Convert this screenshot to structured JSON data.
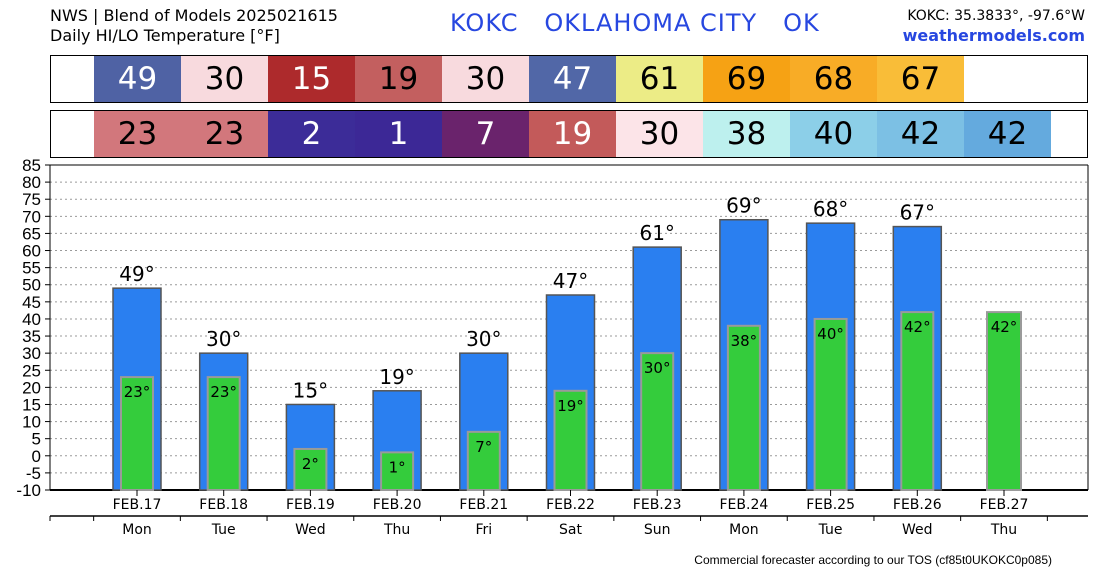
{
  "header": {
    "line1": "NWS | Blend of Models 2025021615",
    "line2": "Daily HI/LO Temperature [°F]",
    "station": "KOKC   OKLAHOMA CITY   OK",
    "coords": "KOKC: 35.3833°, -97.6°W",
    "site": "weathermodels.com"
  },
  "hi_strip": [
    {
      "value": "49",
      "bg": "#4f62a4",
      "fg": "#ffffff"
    },
    {
      "value": "30",
      "bg": "#f8dade",
      "fg": "#000000"
    },
    {
      "value": "15",
      "bg": "#ad2a2c",
      "fg": "#ffffff"
    },
    {
      "value": "19",
      "bg": "#c35f5f",
      "fg": "#000000"
    },
    {
      "value": "30",
      "bg": "#f8dade",
      "fg": "#000000"
    },
    {
      "value": "47",
      "bg": "#5167a7",
      "fg": "#ffffff"
    },
    {
      "value": "61",
      "bg": "#ecec86",
      "fg": "#000000"
    },
    {
      "value": "69",
      "bg": "#f6a214",
      "fg": "#000000"
    },
    {
      "value": "68",
      "bg": "#f8ac26",
      "fg": "#000000"
    },
    {
      "value": "67",
      "bg": "#f9bd38",
      "fg": "#000000"
    }
  ],
  "lo_strip": [
    {
      "value": "23",
      "bg": "#d2777c",
      "fg": "#000000"
    },
    {
      "value": "23",
      "bg": "#d2777c",
      "fg": "#000000"
    },
    {
      "value": "2",
      "bg": "#3c2c98",
      "fg": "#ffffff"
    },
    {
      "value": "1",
      "bg": "#3c2896",
      "fg": "#ffffff"
    },
    {
      "value": "7",
      "bg": "#6a236c",
      "fg": "#ffffff"
    },
    {
      "value": "19",
      "bg": "#c35a5a",
      "fg": "#ffffff"
    },
    {
      "value": "30",
      "bg": "#fce4e8",
      "fg": "#000000"
    },
    {
      "value": "38",
      "bg": "#bdf0ee",
      "fg": "#000000"
    },
    {
      "value": "40",
      "bg": "#8ccfe8",
      "fg": "#000000"
    },
    {
      "value": "42",
      "bg": "#7cc0e4",
      "fg": "#000000"
    },
    {
      "value": "42",
      "bg": "#64aade",
      "fg": "#000000"
    }
  ],
  "chart_data": {
    "type": "bar",
    "categories": [
      "FEB.17",
      "FEB.18",
      "FEB.19",
      "FEB.20",
      "FEB.21",
      "FEB.22",
      "FEB.23",
      "FEB.24",
      "FEB.25",
      "FEB.26",
      "FEB.27"
    ],
    "weekdays": [
      "Mon",
      "Tue",
      "Wed",
      "Thu",
      "Fri",
      "Sat",
      "Sun",
      "Mon",
      "Tue",
      "Wed",
      "Thu"
    ],
    "series": [
      {
        "name": "",
        "values": [
          49,
          30,
          15,
          19,
          30,
          47,
          61,
          69,
          68,
          67,
          null
        ],
        "color": "#2a7ff0"
      },
      {
        "name": "",
        "values": [
          23,
          23,
          2,
          1,
          7,
          19,
          30,
          38,
          40,
          42,
          42
        ],
        "color": "#34cc3c"
      }
    ],
    "hi_labels": [
      "49°",
      "30°",
      "15°",
      "19°",
      "30°",
      "47°",
      "61°",
      "69°",
      "68°",
      "67°",
      ""
    ],
    "lo_labels": [
      "23°",
      "23°",
      "2°",
      "1°",
      "7°",
      "19°",
      "30°",
      "38°",
      "40°",
      "42°",
      "42°"
    ],
    "yticks": [
      "-10",
      "-5",
      "0",
      "5",
      "10",
      "15",
      "20",
      "25",
      "30",
      "35",
      "40",
      "45",
      "50",
      "55",
      "60",
      "65",
      "70",
      "75",
      "80",
      "85"
    ],
    "ylim": [
      -10,
      85
    ],
    "grid": true,
    "xlabel": "",
    "ylabel": ""
  },
  "footer": "Commercial forecaster according to our TOS (cf85t0UKOKC0p085)"
}
